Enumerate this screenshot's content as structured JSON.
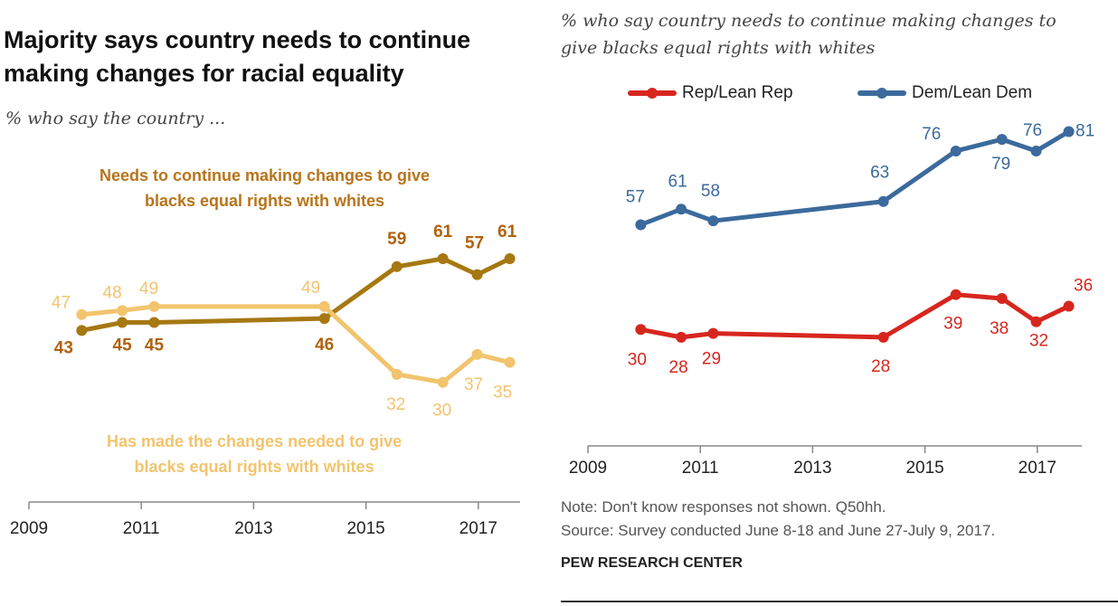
{
  "title": "Majority says country needs to continue making changes for racial equality",
  "title_lines": [
    "Majority says country needs to continue",
    "making changes for racial equality"
  ],
  "colors": {
    "needs_changes": "#a67812",
    "needs_changes_label": "#b0620f",
    "has_made": "#f2c46e",
    "rep": "#d7261e",
    "dem": "#3b6a9c"
  },
  "chart_data": [
    {
      "type": "line",
      "subtitle": "% who say the country ...",
      "x": [
        2009.94,
        2010.66,
        2011.23,
        2014.26,
        2015.55,
        2016.37,
        2016.98,
        2017.56
      ],
      "xticks": [
        "2009",
        "2011",
        "2013",
        "2015",
        "2017"
      ],
      "xlim": [
        2009,
        2017.8
      ],
      "ylim": [
        0,
        100
      ],
      "grid": false,
      "series": [
        {
          "name": "Needs to continue making changes to give blacks equal rights with whites",
          "name_lines": [
            "Needs to continue making changes to give",
            "blacks equal rights with whites"
          ],
          "values": [
            43,
            45,
            45,
            46,
            59,
            61,
            57,
            61
          ]
        },
        {
          "name": "Has made the changes needed to give blacks equal rights with whites",
          "name_lines": [
            "Has made the changes needed  to give",
            "blacks equal rights with whites"
          ],
          "values": [
            47,
            48,
            49,
            49,
            32,
            30,
            37,
            35
          ]
        }
      ]
    },
    {
      "type": "line",
      "subtitle": "% who say country needs to continue making changes to give blacks equal rights with whites",
      "subtitle_lines": [
        "% who say country  needs to continue  making changes to",
        "give blacks equal rights with whites"
      ],
      "x": [
        2009.94,
        2010.66,
        2011.23,
        2014.26,
        2015.55,
        2016.37,
        2016.98,
        2017.56
      ],
      "xticks": [
        "2009",
        "2011",
        "2013",
        "2015",
        "2017"
      ],
      "xlim": [
        2009,
        2017.8
      ],
      "ylim": [
        0,
        100
      ],
      "grid": false,
      "legend": "top",
      "series": [
        {
          "name": "Rep/Lean Rep",
          "values": [
            30,
            28,
            29,
            28,
            39,
            38,
            32,
            36
          ]
        },
        {
          "name": "Dem/Lean Dem",
          "values": [
            57,
            61,
            58,
            63,
            76,
            79,
            76,
            81
          ]
        }
      ]
    }
  ],
  "note": "Note: Don't know responses not shown. Q50hh.",
  "source": "Source: Survey conducted June 8-18 and June 27-July 9, 2017.",
  "brand": "PEW RESEARCH CENTER"
}
